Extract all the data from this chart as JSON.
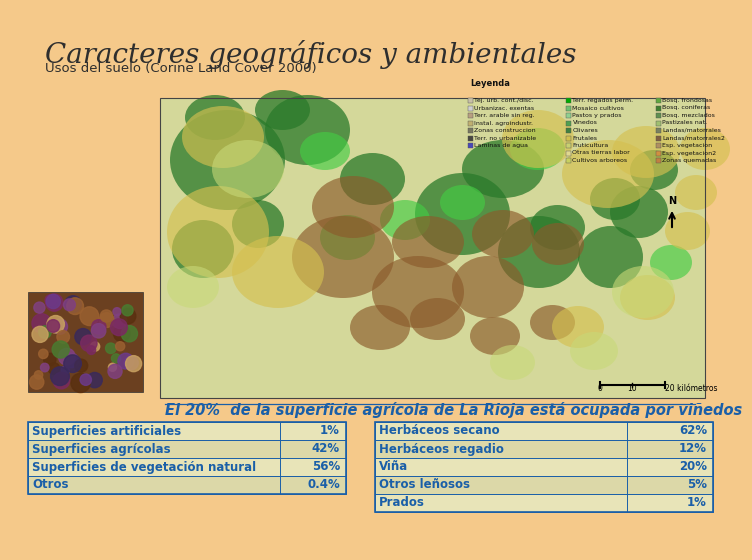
{
  "title": "Caracteres geográficos y ambientales",
  "subtitle": "Usos del suelo (Corine Land Cover 2000)",
  "caption": "El 20%  de la superficie agrícola de La Rioja está ocupada por viñedos",
  "background_color": "#f5c98a",
  "title_color": "#2e2e2e",
  "subtitle_color": "#2e2e2e",
  "caption_color": "#1a5fa8",
  "table_text_color": "#1a5fa8",
  "table_border_color": "#1a5fa8",
  "table1": {
    "rows": [
      [
        "Superficies artificiales",
        "1%"
      ],
      [
        "Superficies agrícolas",
        "42%"
      ],
      [
        "Superficies de vegetación natural",
        "56%"
      ],
      [
        "Otros",
        "0.4%"
      ]
    ]
  },
  "table2": {
    "rows": [
      [
        "Herbáceos secano",
        "62%"
      ],
      [
        "Herbáceos regadio",
        "12%"
      ],
      [
        "Viña",
        "20%"
      ],
      [
        "Otros leñosos",
        "5%"
      ],
      [
        "Prados",
        "1%"
      ]
    ]
  }
}
